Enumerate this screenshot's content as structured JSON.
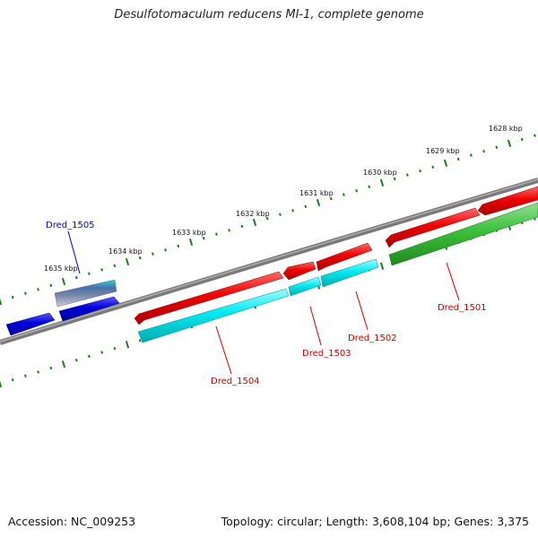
{
  "title": "Desulfotomaculum reducens MI-1, complete genome",
  "footer": {
    "accession": "Accession: NC_009253",
    "summary": "Topology: circular; Length: 3,608,104 bp; Genes: 3,375"
  },
  "ruler": {
    "labels": [
      "1628 kbp",
      "1629 kbp",
      "1630 kbp",
      "1631 kbp",
      "1632 kbp",
      "1633 kbp",
      "1634 kbp",
      "1635 kbp"
    ],
    "color": "#1f7a1f"
  },
  "colors": {
    "backbone": "#808080",
    "forward_gene": "#ee0000",
    "reverse_cds": "#00e5ee",
    "reverse_gene": "#33bb33",
    "blue_feature": "#0000dd",
    "label_red": "#cc0000",
    "label_blue": "#0000cc"
  },
  "gene_labels": [
    "Dred_1505",
    "Dred_1504",
    "Dred_1503",
    "Dred_1502",
    "Dred_1501"
  ]
}
